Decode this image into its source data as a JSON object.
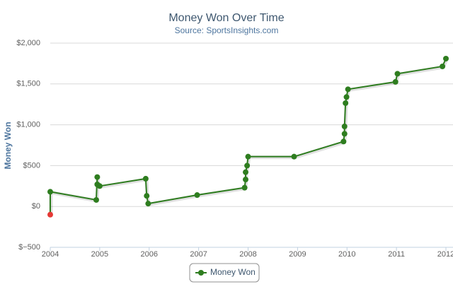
{
  "chart_data": {
    "type": "line",
    "title": "Money Won Over Time",
    "subtitle": "Source: SportsInsights.com",
    "y_label": "Money Won",
    "x": [
      2004.0,
      2004.0,
      2004.93,
      2004.95,
      2004.95,
      2005.0,
      2005.93,
      2005.95,
      2005.98,
      2006.97,
      2007.93,
      2007.95,
      2007.95,
      2007.98,
      2008.0,
      2008.93,
      2009.93,
      2009.95,
      2009.95,
      2009.97,
      2009.99,
      2010.02,
      2010.98,
      2011.02,
      2011.93,
      2012.0
    ],
    "series": [
      {
        "name": "Money Won",
        "color": "#2e7d1f",
        "negative_color": "#e53935",
        "values": [
          -100,
          180,
          80,
          360,
          270,
          250,
          340,
          130,
          35,
          140,
          230,
          330,
          420,
          500,
          610,
          610,
          795,
          890,
          980,
          1265,
          1340,
          1435,
          1525,
          1625,
          1715,
          1810
        ]
      }
    ],
    "xlim": [
      2004,
      2012
    ],
    "xticks": [
      2004,
      2005,
      2006,
      2007,
      2008,
      2009,
      2010,
      2011,
      2012
    ],
    "ylim": [
      -500,
      2000
    ],
    "yticks": [
      {
        "value": -500,
        "label": "$−500"
      },
      {
        "value": 0,
        "label": "$0"
      },
      {
        "value": 500,
        "label": "$500"
      },
      {
        "value": 1000,
        "label": "$1,000"
      },
      {
        "value": 1500,
        "label": "$1,500"
      },
      {
        "value": 2000,
        "label": "$2,000"
      }
    ],
    "grid": true,
    "legend": "bottom"
  }
}
